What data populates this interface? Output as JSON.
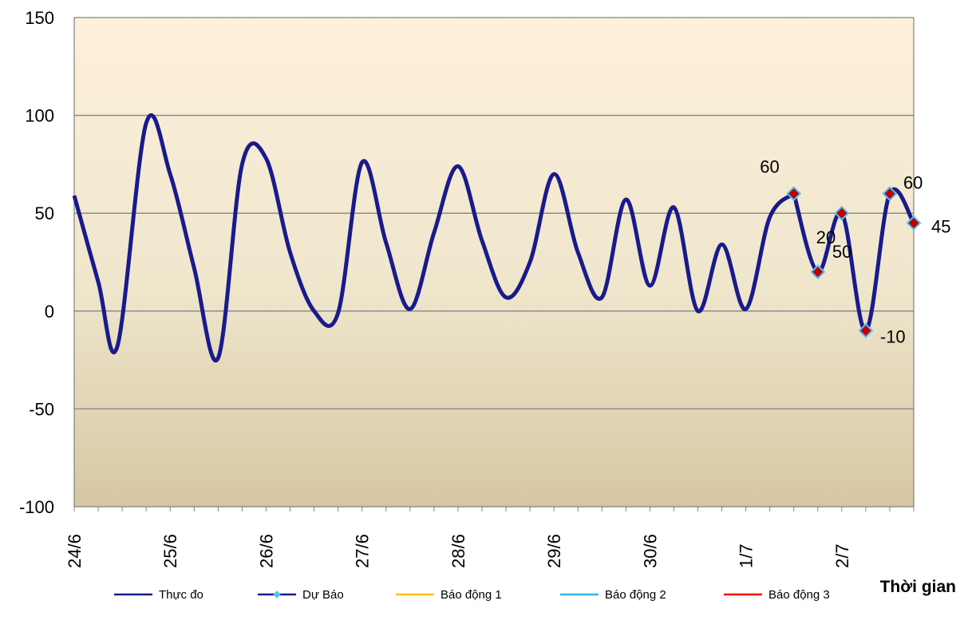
{
  "chart_data": {
    "type": "line",
    "xlabel": "Thời gian",
    "ylabel": "",
    "ylim": [
      -100,
      150
    ],
    "yticks": [
      -100,
      -50,
      0,
      50,
      100,
      150
    ],
    "grid": true,
    "legend_position": "bottom",
    "x_tick_labels": [
      "24/6",
      "25/6",
      "26/6",
      "27/6",
      "28/6",
      "29/6",
      "30/6",
      "1/7",
      "2/7"
    ],
    "series": [
      {
        "name": "Thực đo",
        "color": "#1a1a8c",
        "x": [
          0,
          0.25,
          0.45,
          0.75,
          1.0,
          1.25,
          1.5,
          1.75,
          2.0,
          2.25,
          2.5,
          2.75,
          3.0,
          3.25,
          3.5,
          3.75,
          4.0,
          4.25,
          4.5,
          4.75,
          5.0,
          5.25,
          5.5,
          5.75,
          6.0,
          6.25,
          6.5,
          6.75,
          7.0,
          7.25,
          7.5
        ],
        "y": [
          59,
          15,
          -18,
          96,
          70,
          22,
          -24,
          75,
          78,
          30,
          0,
          -1,
          76,
          35,
          1,
          40,
          74,
          36,
          7,
          25,
          70,
          30,
          7,
          57,
          13,
          53,
          0,
          34,
          1,
          48,
          60
        ]
      },
      {
        "name": "Dự Báo",
        "color": "#1a1a8c",
        "marker_fill": "#c00000",
        "marker_edge": "#4fc3f7",
        "x": [
          7.5,
          7.75,
          8.0,
          8.25,
          8.5,
          8.75
        ],
        "y": [
          60,
          20,
          50,
          -10,
          60,
          45
        ],
        "labels": [
          "60",
          "20",
          "50",
          "-10",
          "60",
          "45"
        ]
      },
      {
        "name": "Báo động 1",
        "color": "#ffc000"
      },
      {
        "name": "Báo động 2",
        "color": "#33b5f0"
      },
      {
        "name": "Báo động 3",
        "color": "#ff0000"
      }
    ]
  }
}
